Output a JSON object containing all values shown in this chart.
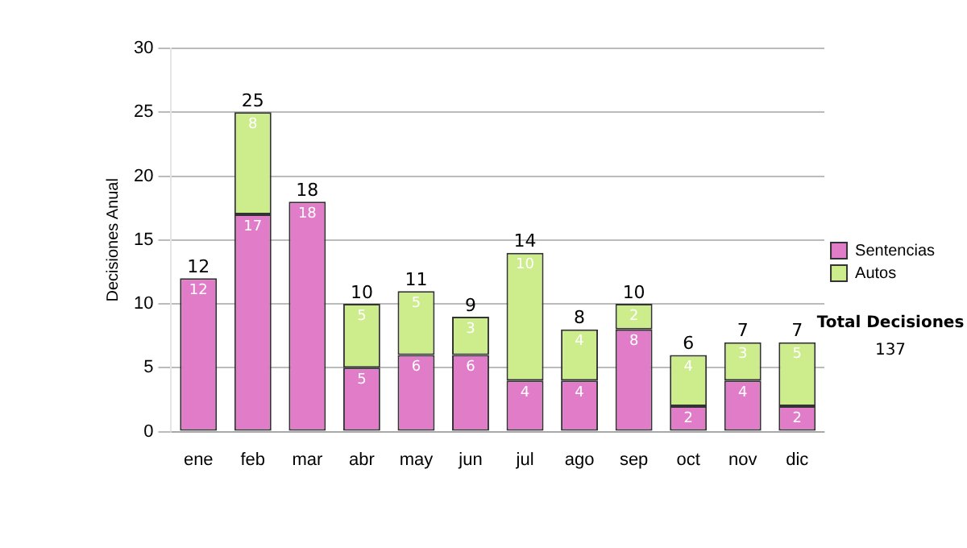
{
  "chart_data": {
    "type": "bar",
    "stacked": true,
    "ylabel": "Decisiones Anual",
    "categories": [
      "ene",
      "feb",
      "mar",
      "abr",
      "may",
      "jun",
      "jul",
      "ago",
      "sep",
      "oct",
      "nov",
      "dic"
    ],
    "series": [
      {
        "name": "Sentencias",
        "color": "#e07cc8",
        "values": [
          12,
          17,
          18,
          5,
          6,
          6,
          4,
          4,
          8,
          2,
          4,
          2
        ],
        "value_labels": [
          "12",
          "17",
          "18",
          "5",
          "6",
          "6",
          "4",
          "4",
          "8",
          "2",
          "4",
          "2"
        ]
      },
      {
        "name": "Autos",
        "color": "#cdec8c",
        "values": [
          0,
          8,
          0,
          5,
          5,
          3,
          10,
          4,
          2,
          4,
          3,
          5
        ],
        "value_labels": [
          null,
          "8",
          null,
          "5",
          "5",
          "3",
          "10",
          "4",
          "2",
          "4",
          "3",
          "5"
        ]
      }
    ],
    "totals": [
      "12",
      "25",
      "18",
      "10",
      "11",
      "9",
      "14",
      "8",
      "10",
      "6",
      "7",
      "7"
    ],
    "ylim": [
      0,
      30
    ],
    "yticks": [
      0,
      5,
      10,
      15,
      20,
      25,
      30
    ],
    "grid": "y",
    "legend": "right",
    "annotations": [
      "Total Decisiones",
      "137"
    ]
  }
}
